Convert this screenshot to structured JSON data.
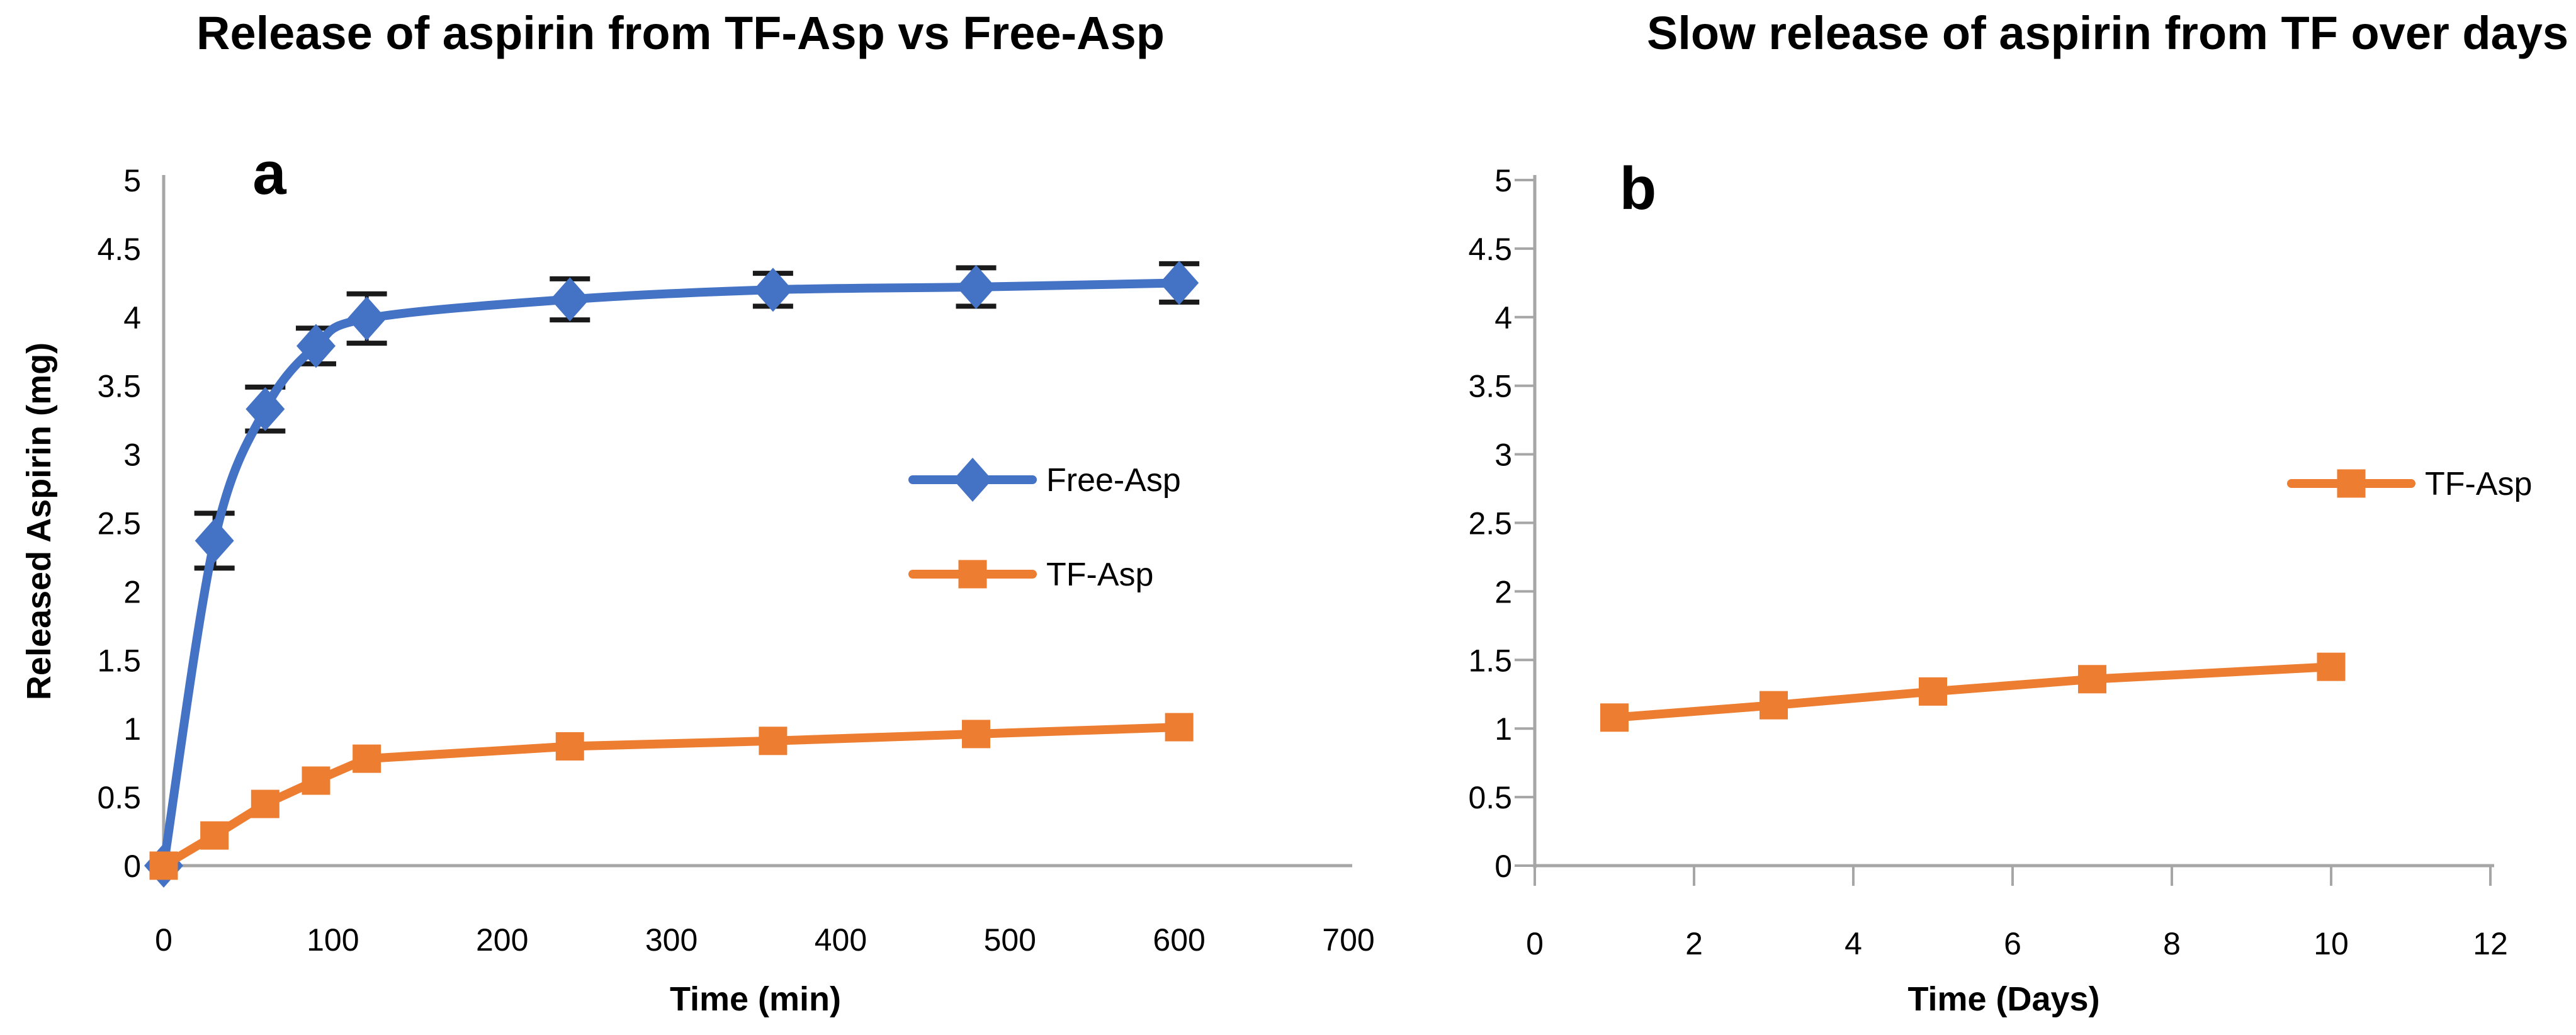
{
  "figure": {
    "background": "#ffffff",
    "axis_color": "#a6a6a6",
    "error_bar_color": "#1a1a1a",
    "text_color": "#000000"
  },
  "chart_data": [
    {
      "type": "line",
      "panel_label": "a",
      "title": "Release of aspirin from TF-Asp vs Free-Asp",
      "xlabel": "Time (min)",
      "ylabel": "Released Aspirin (mg)",
      "xlim": [
        0,
        700
      ],
      "ylim": [
        0,
        5
      ],
      "xticks": [
        0,
        100,
        200,
        300,
        400,
        500,
        600,
        700
      ],
      "yticks": [
        0,
        0.5,
        1,
        1.5,
        2,
        2.5,
        3,
        3.5,
        4,
        4.5,
        5
      ],
      "tick_marks": false,
      "grid": false,
      "legend_position": "inside-right",
      "series": [
        {
          "name": "Free-Asp",
          "color": "#4472C4",
          "marker": "diamond",
          "smooth": true,
          "x": [
            0,
            30,
            60,
            90,
            120,
            240,
            360,
            480,
            600
          ],
          "y": [
            0,
            2.37,
            3.33,
            3.79,
            3.99,
            4.13,
            4.2,
            4.22,
            4.25
          ],
          "yerr": [
            0,
            0.2,
            0.16,
            0.13,
            0.18,
            0.15,
            0.12,
            0.14,
            0.14
          ]
        },
        {
          "name": "TF-Asp",
          "color": "#ED7D31",
          "marker": "square",
          "smooth": false,
          "x": [
            0,
            30,
            60,
            90,
            120,
            240,
            360,
            480,
            600
          ],
          "y": [
            0,
            0.22,
            0.45,
            0.62,
            0.78,
            0.87,
            0.91,
            0.96,
            1.01
          ],
          "yerr": [
            0,
            0,
            0,
            0,
            0,
            0,
            0,
            0,
            0
          ]
        }
      ]
    },
    {
      "type": "line",
      "panel_label": "b",
      "title": "Slow release of aspirin from TF over days",
      "xlabel": "Time (Days)",
      "ylabel": "",
      "xlim": [
        0,
        12
      ],
      "ylim": [
        0,
        5
      ],
      "xticks": [
        0,
        2,
        4,
        6,
        8,
        10,
        12
      ],
      "yticks": [
        0,
        0.5,
        1,
        1.5,
        2,
        2.5,
        3,
        3.5,
        4,
        4.5,
        5
      ],
      "tick_marks": true,
      "grid": false,
      "legend_position": "inside-right",
      "series": [
        {
          "name": "TF-Asp",
          "color": "#ED7D31",
          "marker": "square",
          "smooth": false,
          "x": [
            1,
            3,
            5,
            7,
            10
          ],
          "y": [
            1.08,
            1.17,
            1.27,
            1.36,
            1.45
          ],
          "yerr": [
            0,
            0,
            0,
            0,
            0
          ]
        }
      ]
    }
  ]
}
